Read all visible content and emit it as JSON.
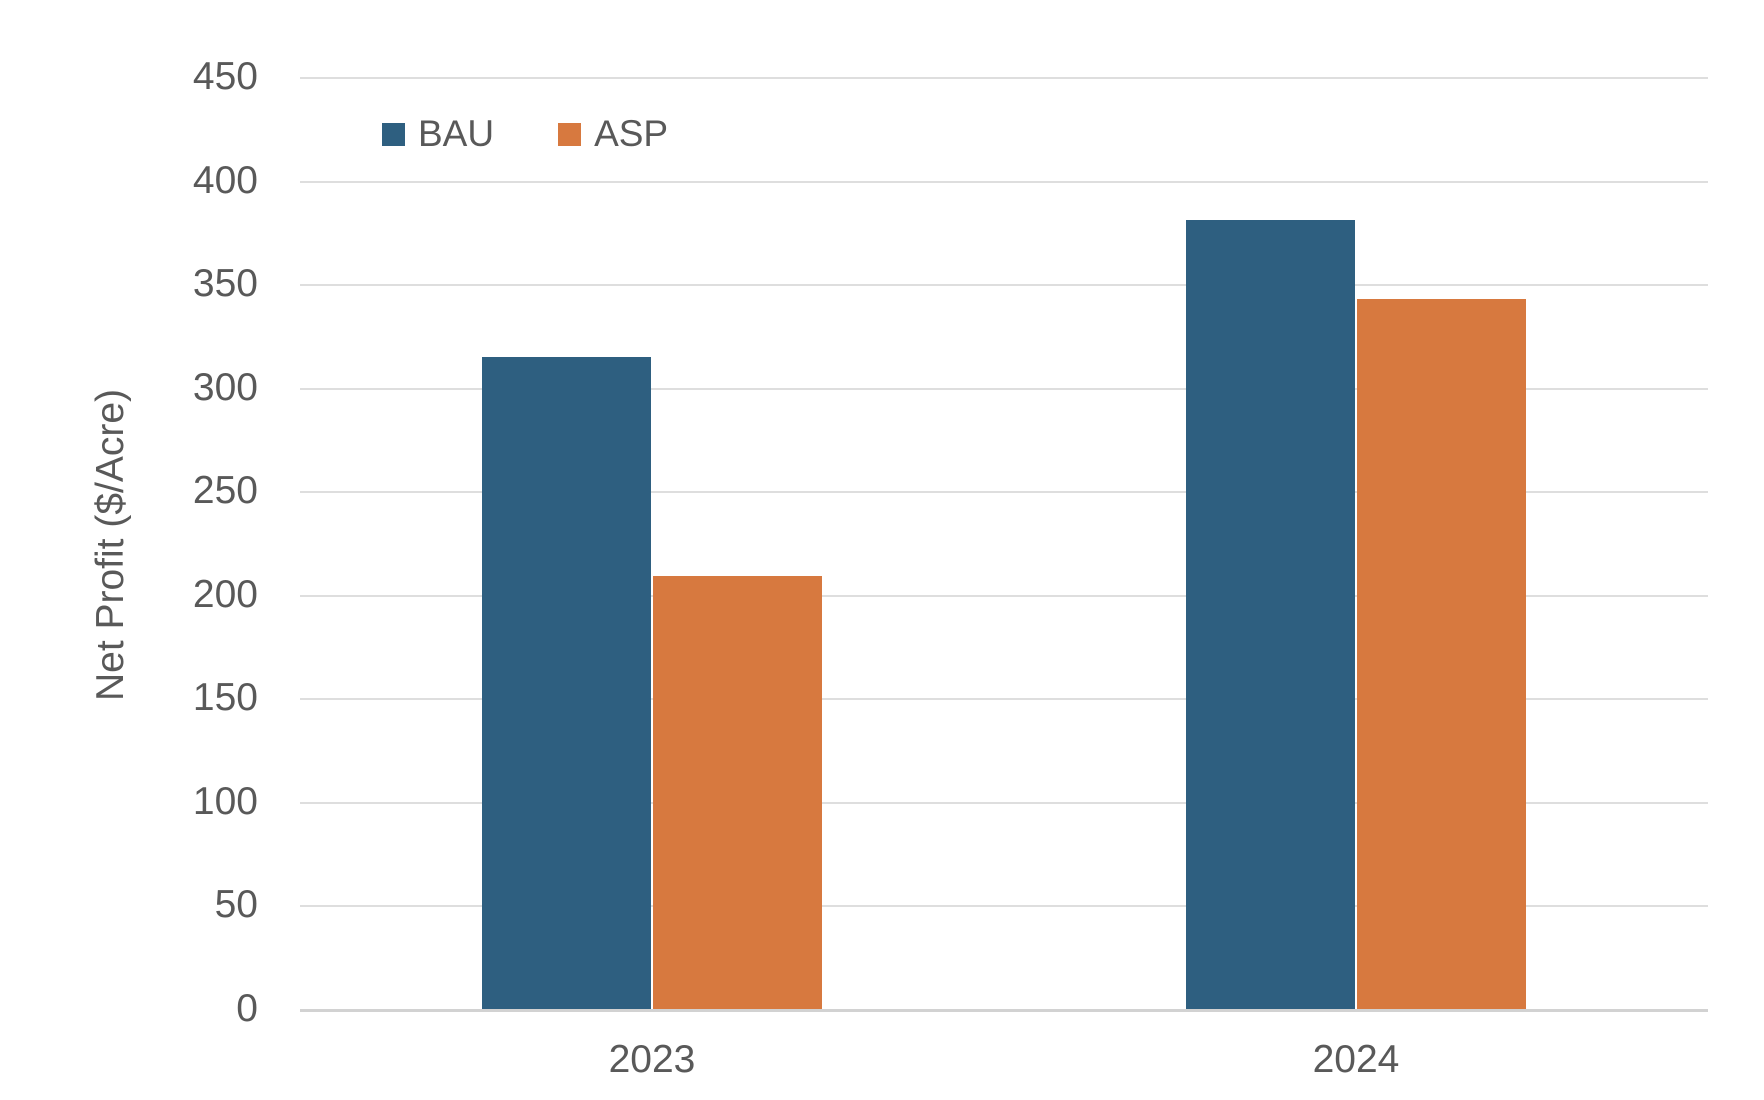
{
  "chart_data": {
    "type": "bar",
    "categories": [
      "2023",
      "2024"
    ],
    "series": [
      {
        "name": "BAU",
        "color": "#2E5F80",
        "values": [
          315,
          381
        ]
      },
      {
        "name": "ASP",
        "color": "#D7793F",
        "values": [
          209,
          343
        ]
      }
    ],
    "title": "",
    "xlabel": "",
    "ylabel": "Net Profit ($/Acre)",
    "ylim": [
      0,
      450
    ],
    "ytick_step": 50,
    "grid": true,
    "legend_position": "top-left-inside",
    "colors": {
      "text": "#595959",
      "gridline": "#DEDEDE",
      "axis_line": "#D2D2D2",
      "background": "#FFFFFF"
    }
  }
}
